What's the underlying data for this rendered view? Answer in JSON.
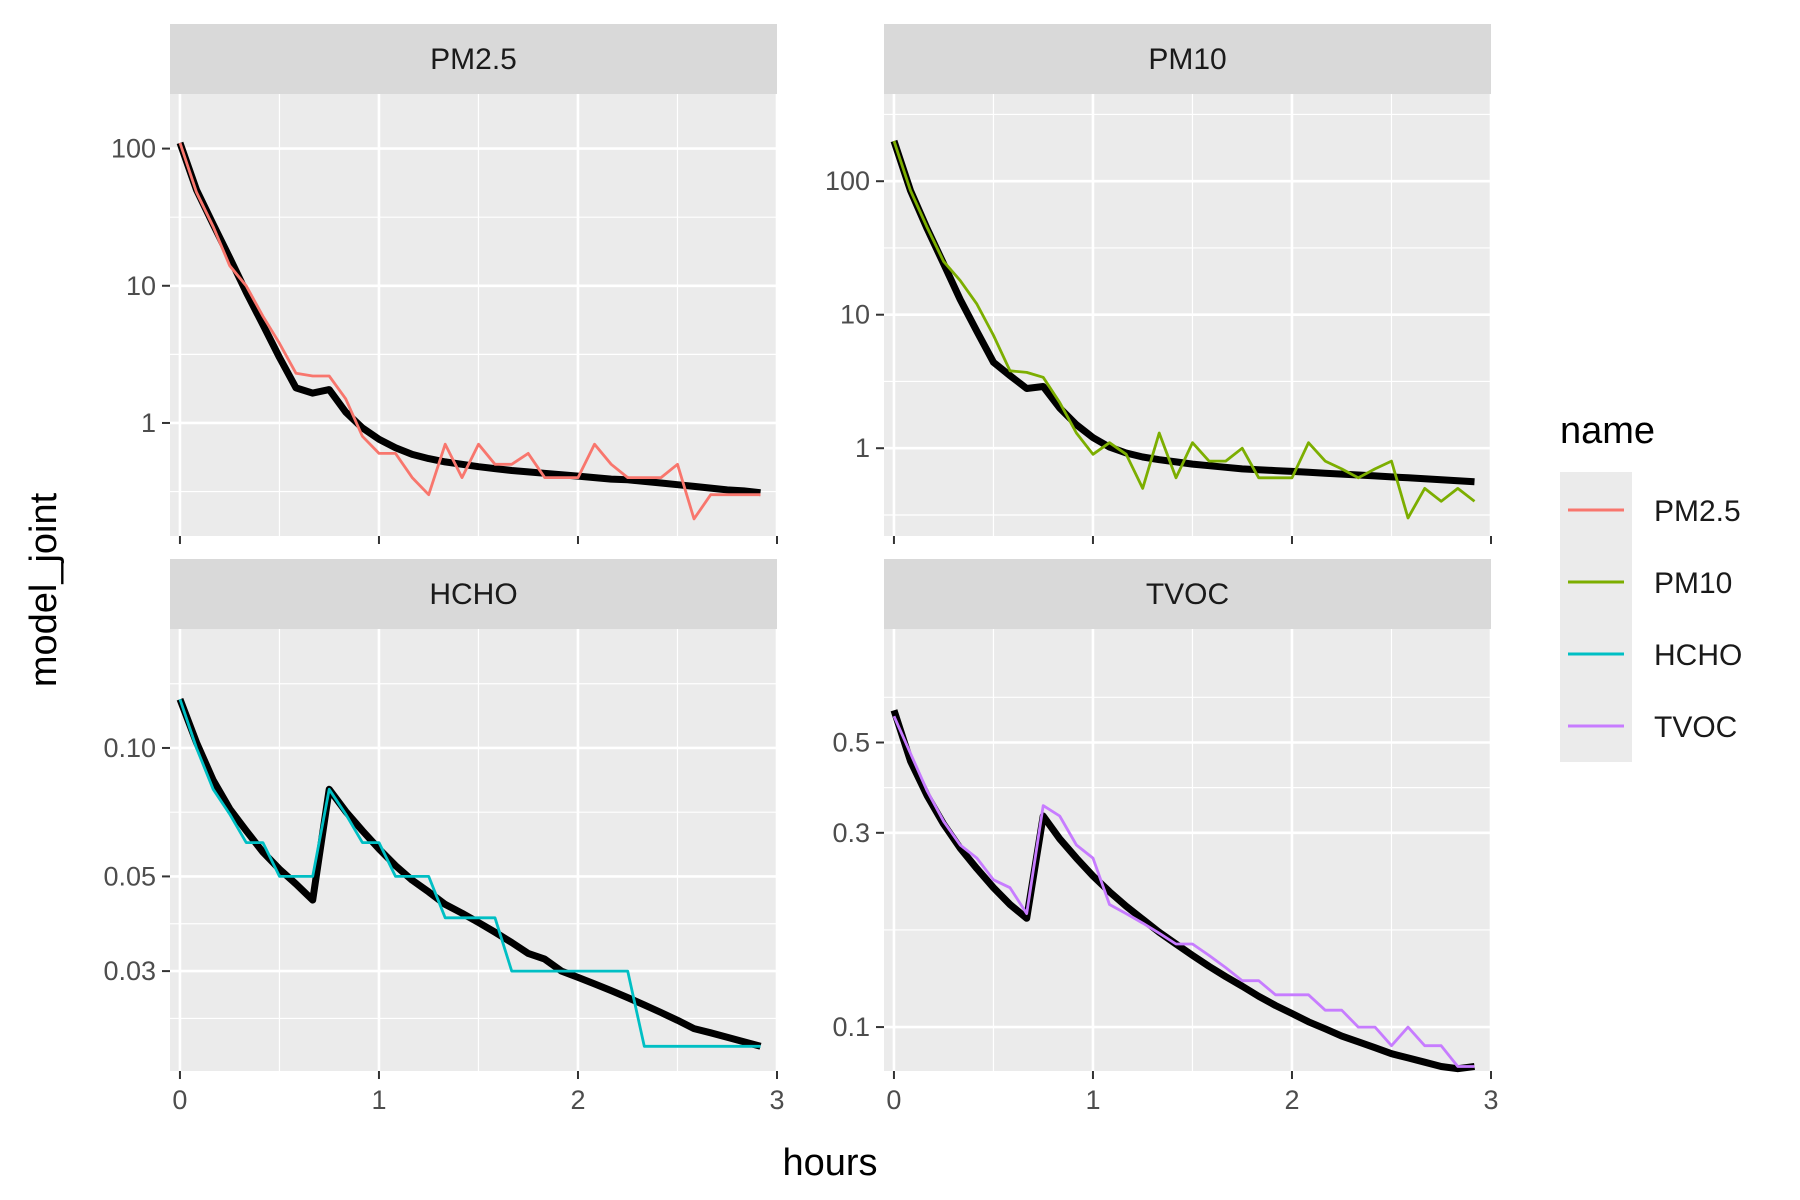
{
  "chart_data": {
    "type": "line",
    "layout": "faceted 2x2 small multiples, independent log-scale y axes",
    "xlabel": "hours",
    "ylabel": "model_joint",
    "legend": {
      "title": "name",
      "position": "right"
    },
    "x_ticks": [
      0,
      1,
      2,
      3
    ],
    "x_range": [
      -0.05,
      3.0
    ],
    "model_line_color": "#000000",
    "panels": [
      {
        "title": "PM2.5",
        "series_name": "PM2.5",
        "color": "#F8766D",
        "y_scale": "log",
        "y_range": [
          0.15,
          250
        ],
        "y_ticks": [
          {
            "value": 100,
            "label": "100"
          },
          {
            "value": 10,
            "label": "10"
          },
          {
            "value": 1,
            "label": "1"
          }
        ],
        "observed": {
          "x": [
            0,
            0.083,
            0.167,
            0.25,
            0.333,
            0.417,
            0.5,
            0.583,
            0.667,
            0.75,
            0.833,
            0.917,
            1.0,
            1.083,
            1.167,
            1.25,
            1.333,
            1.417,
            1.5,
            1.583,
            1.667,
            1.75,
            1.833,
            1.917,
            2.0,
            2.083,
            2.167,
            2.25,
            2.333,
            2.417,
            2.5,
            2.583,
            2.667,
            2.75,
            2.833,
            2.917
          ],
          "y": [
            110,
            48,
            27,
            14,
            10,
            6,
            3.8,
            2.3,
            2.2,
            2.2,
            1.5,
            0.8,
            0.6,
            0.6,
            0.4,
            0.3,
            0.7,
            0.4,
            0.7,
            0.5,
            0.5,
            0.6,
            0.4,
            0.4,
            0.4,
            0.7,
            0.5,
            0.4,
            0.4,
            0.4,
            0.5,
            0.2,
            0.3,
            0.3,
            0.3,
            0.3
          ]
        },
        "model": {
          "x": [
            0,
            0.083,
            0.167,
            0.25,
            0.333,
            0.417,
            0.5,
            0.583,
            0.667,
            0.75,
            0.833,
            0.917,
            1.0,
            1.083,
            1.167,
            1.25,
            1.333,
            1.417,
            1.5,
            1.583,
            1.667,
            1.75,
            1.833,
            1.917,
            2.0,
            2.083,
            2.167,
            2.25,
            2.333,
            2.417,
            2.5,
            2.583,
            2.667,
            2.75,
            2.833,
            2.917
          ],
          "y": [
            110,
            50,
            28,
            16,
            9,
            5.2,
            3,
            1.8,
            1.65,
            1.75,
            1.2,
            0.92,
            0.76,
            0.66,
            0.59,
            0.55,
            0.52,
            0.5,
            0.48,
            0.465,
            0.45,
            0.44,
            0.43,
            0.42,
            0.41,
            0.4,
            0.39,
            0.385,
            0.375,
            0.365,
            0.355,
            0.345,
            0.335,
            0.325,
            0.32,
            0.31
          ]
        }
      },
      {
        "title": "PM10",
        "series_name": "PM10",
        "color": "#7CAE00",
        "y_scale": "log",
        "y_range": [
          0.22,
          450
        ],
        "y_ticks": [
          {
            "value": 100,
            "label": "100"
          },
          {
            "value": 10,
            "label": "10"
          },
          {
            "value": 1,
            "label": "1"
          }
        ],
        "observed": {
          "x": [
            0,
            0.083,
            0.167,
            0.25,
            0.333,
            0.417,
            0.5,
            0.583,
            0.667,
            0.75,
            0.833,
            0.917,
            1.0,
            1.083,
            1.167,
            1.25,
            1.333,
            1.417,
            1.5,
            1.583,
            1.667,
            1.75,
            1.833,
            1.917,
            2.0,
            2.083,
            2.167,
            2.25,
            2.333,
            2.417,
            2.5,
            2.583,
            2.667,
            2.75,
            2.833,
            2.917
          ],
          "y": [
            200,
            85,
            45,
            25,
            18,
            12,
            7,
            3.8,
            3.7,
            3.4,
            2.2,
            1.3,
            0.9,
            1.1,
            0.9,
            0.5,
            1.3,
            0.6,
            1.1,
            0.8,
            0.8,
            1.0,
            0.6,
            0.6,
            0.6,
            1.1,
            0.8,
            0.7,
            0.6,
            0.7,
            0.8,
            0.3,
            0.5,
            0.4,
            0.5,
            0.4
          ]
        },
        "model": {
          "x": [
            0,
            0.083,
            0.167,
            0.25,
            0.333,
            0.417,
            0.5,
            0.583,
            0.667,
            0.75,
            0.833,
            0.917,
            1.0,
            1.083,
            1.167,
            1.25,
            1.333,
            1.417,
            1.5,
            1.583,
            1.667,
            1.75,
            1.833,
            1.917,
            2.0,
            2.083,
            2.167,
            2.25,
            2.333,
            2.417,
            2.5,
            2.583,
            2.667,
            2.75,
            2.833,
            2.917
          ],
          "y": [
            200,
            85,
            44,
            24,
            13,
            7.5,
            4.4,
            3.5,
            2.8,
            2.9,
            2.0,
            1.5,
            1.2,
            1.02,
            0.92,
            0.86,
            0.82,
            0.79,
            0.76,
            0.74,
            0.72,
            0.7,
            0.69,
            0.68,
            0.67,
            0.66,
            0.65,
            0.64,
            0.63,
            0.62,
            0.61,
            0.6,
            0.59,
            0.58,
            0.57,
            0.56
          ]
        }
      },
      {
        "title": "HCHO",
        "series_name": "HCHO",
        "color": "#00BFC4",
        "y_scale": "log",
        "y_range": [
          0.0175,
          0.19
        ],
        "y_ticks": [
          {
            "value": 0.1,
            "label": "0.10"
          },
          {
            "value": 0.05,
            "label": "0.05"
          },
          {
            "value": 0.03,
            "label": "0.03"
          }
        ],
        "observed": {
          "x": [
            0,
            0.083,
            0.167,
            0.25,
            0.333,
            0.417,
            0.5,
            0.583,
            0.667,
            0.75,
            0.833,
            0.917,
            1.0,
            1.083,
            1.167,
            1.25,
            1.333,
            1.417,
            1.5,
            1.583,
            1.667,
            1.75,
            1.833,
            1.917,
            2.0,
            2.083,
            2.167,
            2.25,
            2.333,
            2.417,
            2.5,
            2.583,
            2.667,
            2.75,
            2.833,
            2.917
          ],
          "y": [
            0.13,
            0.1,
            0.08,
            0.07,
            0.06,
            0.06,
            0.05,
            0.05,
            0.05,
            0.08,
            0.07,
            0.06,
            0.06,
            0.05,
            0.05,
            0.05,
            0.04,
            0.04,
            0.04,
            0.04,
            0.03,
            0.03,
            0.03,
            0.03,
            0.03,
            0.03,
            0.03,
            0.03,
            0.02,
            0.02,
            0.02,
            0.02,
            0.02,
            0.02,
            0.02,
            0.02
          ]
        },
        "model": {
          "x": [
            0,
            0.083,
            0.167,
            0.25,
            0.333,
            0.417,
            0.5,
            0.583,
            0.667,
            0.75,
            0.833,
            0.917,
            1.0,
            1.083,
            1.167,
            1.25,
            1.333,
            1.417,
            1.5,
            1.583,
            1.667,
            1.75,
            1.833,
            1.917,
            2.0,
            2.083,
            2.167,
            2.25,
            2.333,
            2.417,
            2.5,
            2.583,
            2.667,
            2.75,
            2.833,
            2.917
          ],
          "y": [
            0.13,
            0.103,
            0.084,
            0.072,
            0.064,
            0.057,
            0.052,
            0.048,
            0.044,
            0.08,
            0.071,
            0.064,
            0.058,
            0.053,
            0.049,
            0.046,
            0.043,
            0.041,
            0.039,
            0.037,
            0.035,
            0.033,
            0.032,
            0.03,
            0.029,
            0.028,
            0.027,
            0.026,
            0.025,
            0.024,
            0.023,
            0.022,
            0.0215,
            0.021,
            0.0205,
            0.02
          ]
        }
      },
      {
        "title": "TVOC",
        "series_name": "TVOC",
        "color": "#C77CFF",
        "y_scale": "log",
        "y_range": [
          0.078,
          0.95
        ],
        "y_ticks": [
          {
            "value": 0.5,
            "label": "0.5"
          },
          {
            "value": 0.3,
            "label": "0.3"
          },
          {
            "value": 0.1,
            "label": "0.1"
          }
        ],
        "observed": {
          "x": [
            0,
            0.083,
            0.167,
            0.25,
            0.333,
            0.417,
            0.5,
            0.583,
            0.667,
            0.75,
            0.833,
            0.917,
            1.0,
            1.083,
            1.167,
            1.25,
            1.333,
            1.417,
            1.5,
            1.583,
            1.667,
            1.75,
            1.833,
            1.917,
            2.0,
            2.083,
            2.167,
            2.25,
            2.333,
            2.417,
            2.5,
            2.583,
            2.667,
            2.75,
            2.833,
            2.917
          ],
          "y": [
            0.58,
            0.47,
            0.38,
            0.32,
            0.28,
            0.26,
            0.23,
            0.22,
            0.19,
            0.35,
            0.33,
            0.28,
            0.26,
            0.2,
            0.19,
            0.18,
            0.17,
            0.16,
            0.16,
            0.15,
            0.14,
            0.13,
            0.13,
            0.12,
            0.12,
            0.12,
            0.11,
            0.11,
            0.1,
            0.1,
            0.09,
            0.1,
            0.09,
            0.09,
            0.08,
            0.08
          ]
        },
        "model": {
          "x": [
            0,
            0.083,
            0.167,
            0.25,
            0.333,
            0.417,
            0.5,
            0.583,
            0.667,
            0.75,
            0.833,
            0.917,
            1.0,
            1.083,
            1.167,
            1.25,
            1.333,
            1.417,
            1.5,
            1.583,
            1.667,
            1.75,
            1.833,
            1.917,
            2.0,
            2.083,
            2.167,
            2.25,
            2.333,
            2.417,
            2.5,
            2.583,
            2.667,
            2.75,
            2.833,
            2.917
          ],
          "y": [
            0.6,
            0.45,
            0.37,
            0.315,
            0.275,
            0.245,
            0.22,
            0.2,
            0.185,
            0.33,
            0.29,
            0.26,
            0.235,
            0.215,
            0.198,
            0.184,
            0.171,
            0.16,
            0.15,
            0.141,
            0.133,
            0.126,
            0.119,
            0.113,
            0.108,
            0.103,
            0.099,
            0.095,
            0.092,
            0.089,
            0.086,
            0.084,
            0.082,
            0.08,
            0.079,
            0.08
          ]
        }
      }
    ]
  }
}
